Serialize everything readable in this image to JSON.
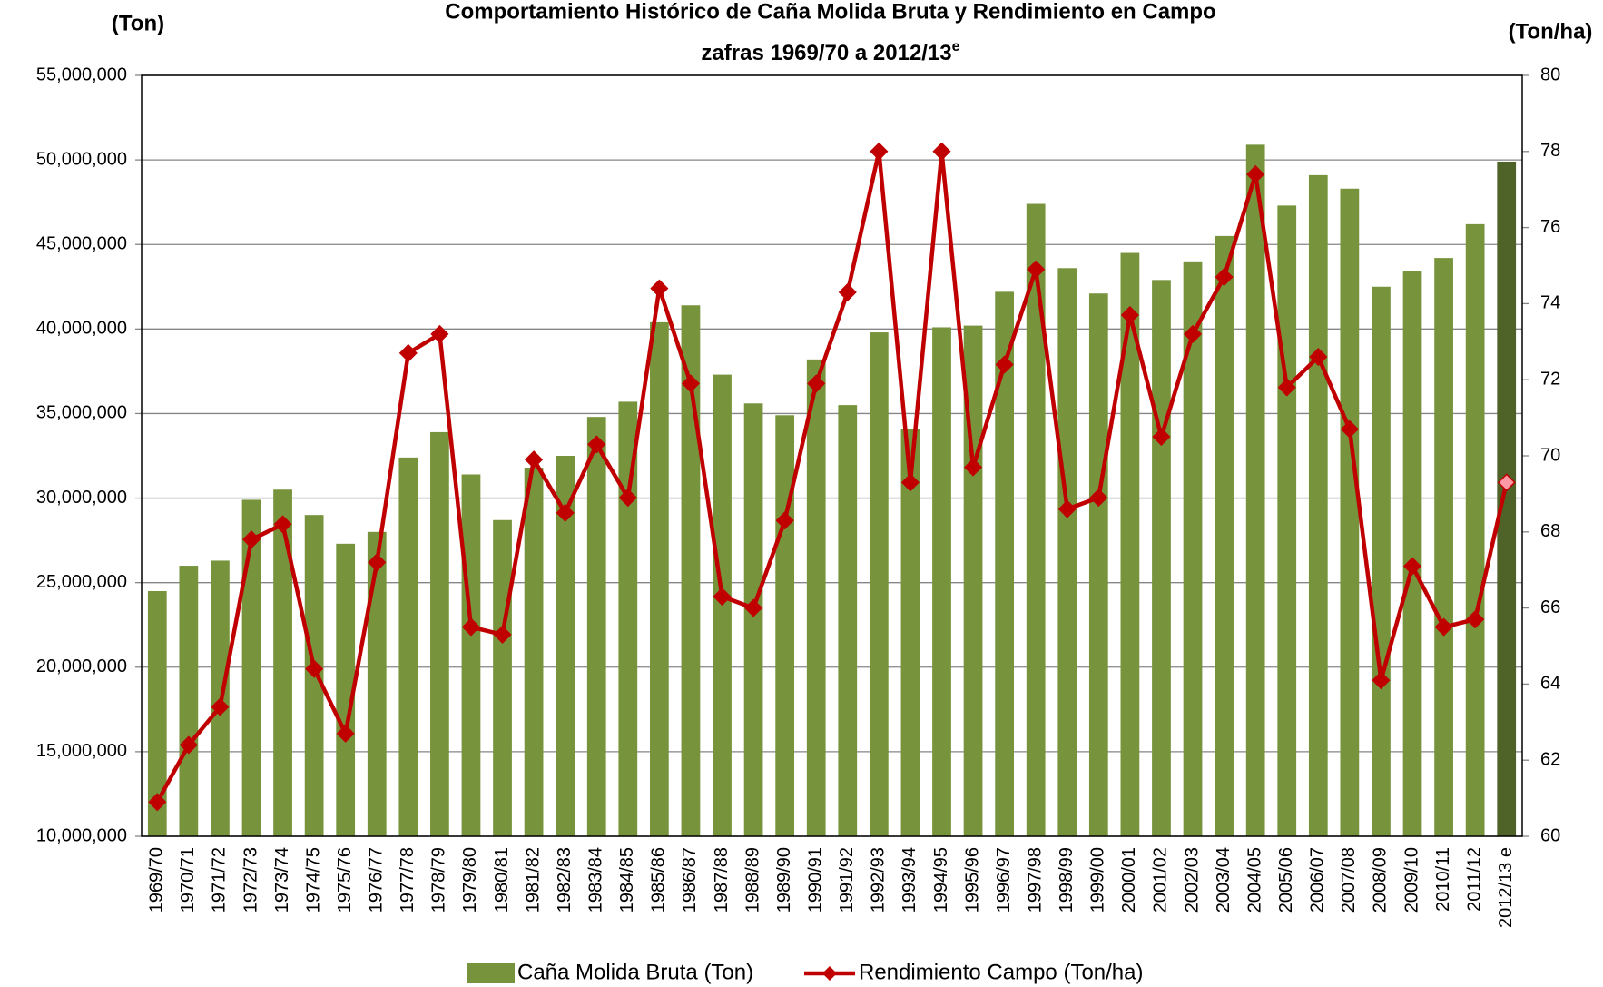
{
  "chart_data": {
    "type": "bar_line",
    "title": "Comportamiento Histórico de Caña Molida Bruta y Rendimiento en Campo",
    "subtitle": "zafras 1969/70 a 2012/13",
    "subtitle_superscript": "e",
    "y_label": "(Ton)",
    "y2_label": "(Ton/ha)",
    "categories": [
      "1969/70",
      "1970/71",
      "1971/72",
      "1972/73",
      "1973/74",
      "1974/75",
      "1975/76",
      "1976/77",
      "1977/78",
      "1978/79",
      "1979/80",
      "1980/81",
      "1981/82",
      "1982/83",
      "1983/84",
      "1984/85",
      "1985/86",
      "1986/87",
      "1987/88",
      "1988/89",
      "1989/90",
      "1990/91",
      "1991/92",
      "1992/93",
      "1993/94",
      "1994/95",
      "1995/96",
      "1996/97",
      "1997/98",
      "1998/99",
      "1999/00",
      "2000/01",
      "2001/02",
      "2002/03",
      "2003/04",
      "2004/05",
      "2005/06",
      "2006/07",
      "2007/08",
      "2008/09",
      "2009/10",
      "2010/11",
      "2011/12",
      "2012/13 e"
    ],
    "series": [
      {
        "name": "Caña Molida Bruta (Ton)",
        "color": "#77933c",
        "highlight_color": "#4f6228",
        "values": [
          24500000,
          26000000,
          26300000,
          29900000,
          30500000,
          29000000,
          27300000,
          28000000,
          32400000,
          33900000,
          31400000,
          28700000,
          31800000,
          32500000,
          34800000,
          35700000,
          40400000,
          41400000,
          37300000,
          35600000,
          34900000,
          38200000,
          35500000,
          39800000,
          34100000,
          40100000,
          40200000,
          42200000,
          47400000,
          43600000,
          42100000,
          44500000,
          42900000,
          44000000,
          45500000,
          50900000,
          47300000,
          49100000,
          48300000,
          42500000,
          43400000,
          44200000,
          46200000,
          49900000
        ]
      },
      {
        "name": "Rendimiento Campo (Ton/ha)",
        "color": "#c00000",
        "axis": "y2",
        "highlight_color": "#ff99a6",
        "values": [
          60.9,
          62.4,
          63.4,
          67.8,
          68.2,
          64.4,
          62.7,
          67.2,
          72.7,
          73.2,
          65.5,
          65.3,
          69.9,
          68.5,
          70.3,
          68.9,
          74.4,
          71.9,
          66.3,
          66.0,
          68.3,
          71.9,
          74.3,
          78.0,
          69.3,
          78.0,
          69.7,
          72.4,
          74.9,
          68.6,
          68.9,
          73.7,
          70.5,
          73.2,
          74.7,
          77.4,
          71.8,
          72.6,
          70.7,
          64.1,
          67.1,
          65.5,
          65.7,
          69.3
        ]
      }
    ],
    "ylim": [
      10000000,
      55000000
    ],
    "yticks": [
      {
        "value": 10000000,
        "label": "10,000,000"
      },
      {
        "value": 15000000,
        "label": "15,000,000"
      },
      {
        "value": 20000000,
        "label": "20,000,000"
      },
      {
        "value": 25000000,
        "label": "25,000,000"
      },
      {
        "value": 30000000,
        "label": "30,000,000"
      },
      {
        "value": 35000000,
        "label": "35,000,000"
      },
      {
        "value": 40000000,
        "label": "40,000,000"
      },
      {
        "value": 45000000,
        "label": "45,000,000"
      },
      {
        "value": 50000000,
        "label": "50,000,000"
      },
      {
        "value": 55000000,
        "label": "55,000,000"
      }
    ],
    "y2lim": [
      60,
      80
    ],
    "y2ticks": [
      60,
      62,
      64,
      66,
      68,
      70,
      72,
      74,
      76,
      78,
      80
    ],
    "grid": true,
    "legend": "bottom"
  }
}
